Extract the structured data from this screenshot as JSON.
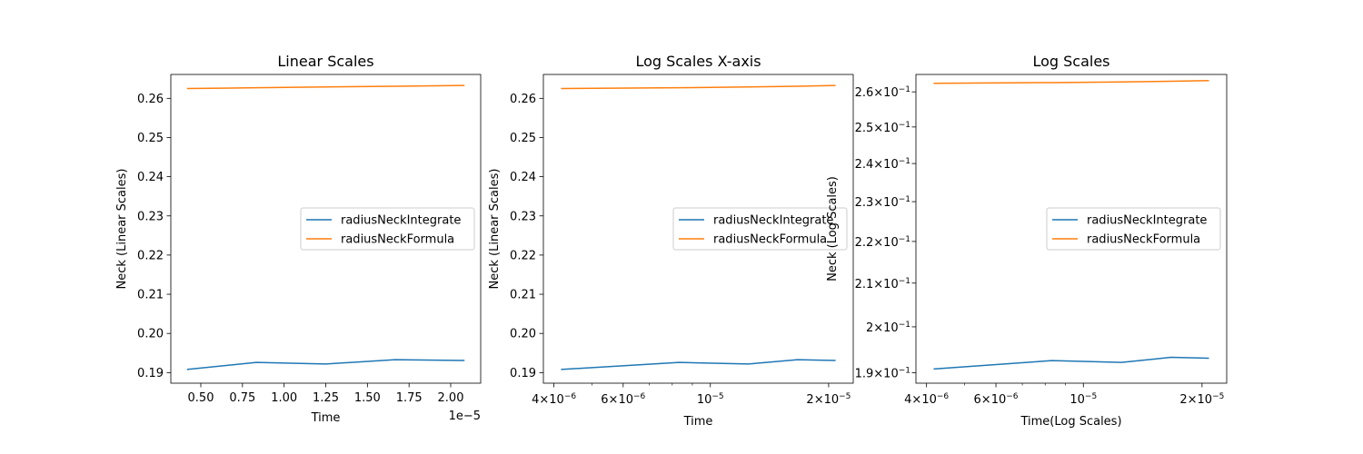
{
  "chart_data": [
    {
      "type": "line",
      "title": "Linear Scales",
      "xlabel": "Time",
      "ylabel": "Neck (Linear Scales)",
      "xscale": "linear",
      "yscale": "linear",
      "xlim": [
        3.2e-06,
        2.18e-05
      ],
      "ylim": [
        0.1873,
        0.2661
      ],
      "x_offset_label": "1e−5",
      "xticks": [
        {
          "value": 5e-06,
          "label": "0.50"
        },
        {
          "value": 7.5e-06,
          "label": "0.75"
        },
        {
          "value": 1e-05,
          "label": "1.00"
        },
        {
          "value": 1.25e-05,
          "label": "1.25"
        },
        {
          "value": 1.5e-05,
          "label": "1.50"
        },
        {
          "value": 1.75e-05,
          "label": "1.75"
        },
        {
          "value": 2e-05,
          "label": "2.00"
        }
      ],
      "yticks": [
        {
          "value": 0.19,
          "label": "0.19"
        },
        {
          "value": 0.2,
          "label": "0.20"
        },
        {
          "value": 0.21,
          "label": "0.21"
        },
        {
          "value": 0.22,
          "label": "0.22"
        },
        {
          "value": 0.23,
          "label": "0.23"
        },
        {
          "value": 0.24,
          "label": "0.24"
        },
        {
          "value": 0.25,
          "label": "0.25"
        },
        {
          "value": 0.26,
          "label": "0.26"
        }
      ],
      "legend_position": "center-right",
      "series": [
        {
          "name": "radiusNeckIntegrate",
          "color": "#1f77b4",
          "x": [
            4.17e-06,
            8.33e-06,
            1.25e-05,
            1.667e-05,
            2.083e-05
          ],
          "y": [
            0.1908,
            0.1926,
            0.1922,
            0.1933,
            0.1931
          ]
        },
        {
          "name": "radiusNeckFormula",
          "color": "#ff7f0e",
          "x": [
            4.17e-06,
            8.33e-06,
            1.25e-05,
            1.667e-05,
            2.083e-05
          ],
          "y": [
            0.2625,
            0.2627,
            0.2629,
            0.2631,
            0.2633
          ]
        }
      ]
    },
    {
      "type": "line",
      "title": "Log Scales X-axis",
      "xlabel": "Time",
      "ylabel": "Neck (Linear Scales)",
      "xscale": "log",
      "yscale": "linear",
      "xlim": [
        3.76e-06,
        2.31e-05
      ],
      "ylim": [
        0.1873,
        0.2661
      ],
      "xticks": [
        {
          "value": 4e-06,
          "base": "4×10",
          "exp": "−6"
        },
        {
          "value": 6e-06,
          "base": "6×10",
          "exp": "−6"
        },
        {
          "value": 1e-05,
          "base": "10",
          "exp": "−5"
        },
        {
          "value": 2e-05,
          "base": "2×10",
          "exp": "−5"
        }
      ],
      "xminor": [
        5e-06,
        7e-06,
        8e-06,
        9e-06
      ],
      "yticks": [
        {
          "value": 0.19,
          "label": "0.19"
        },
        {
          "value": 0.2,
          "label": "0.20"
        },
        {
          "value": 0.21,
          "label": "0.21"
        },
        {
          "value": 0.22,
          "label": "0.22"
        },
        {
          "value": 0.23,
          "label": "0.23"
        },
        {
          "value": 0.24,
          "label": "0.24"
        },
        {
          "value": 0.25,
          "label": "0.25"
        },
        {
          "value": 0.26,
          "label": "0.26"
        }
      ],
      "legend_position": "center-right",
      "series": [
        {
          "name": "radiusNeckIntegrate",
          "color": "#1f77b4",
          "x": [
            4.17e-06,
            8.33e-06,
            1.25e-05,
            1.667e-05,
            2.083e-05
          ],
          "y": [
            0.1908,
            0.1926,
            0.1922,
            0.1933,
            0.1931
          ]
        },
        {
          "name": "radiusNeckFormula",
          "color": "#ff7f0e",
          "x": [
            4.17e-06,
            8.33e-06,
            1.25e-05,
            1.667e-05,
            2.083e-05
          ],
          "y": [
            0.2625,
            0.2627,
            0.2629,
            0.2631,
            0.2633
          ]
        }
      ]
    },
    {
      "type": "line",
      "title": "Log Scales",
      "xlabel": "Time(Log Scales)",
      "ylabel": "Neck (Log Scales)",
      "xscale": "log",
      "yscale": "log",
      "xlim": [
        3.76e-06,
        2.31e-05
      ],
      "ylim": [
        0.1878,
        0.2651
      ],
      "xticks": [
        {
          "value": 4e-06,
          "base": "4×10",
          "exp": "−6"
        },
        {
          "value": 6e-06,
          "base": "6×10",
          "exp": "−6"
        },
        {
          "value": 1e-05,
          "base": "10",
          "exp": "−5"
        },
        {
          "value": 2e-05,
          "base": "2×10",
          "exp": "−5"
        }
      ],
      "xminor": [
        5e-06,
        7e-06,
        8e-06,
        9e-06
      ],
      "yticks": [
        {
          "value": 0.19,
          "base": "1.9×10",
          "exp": "−1"
        },
        {
          "value": 0.2,
          "base": "2×10",
          "exp": "−1"
        },
        {
          "value": 0.21,
          "base": "2.1×10",
          "exp": "−1"
        },
        {
          "value": 0.22,
          "base": "2.2×10",
          "exp": "−1"
        },
        {
          "value": 0.23,
          "base": "2.3×10",
          "exp": "−1"
        },
        {
          "value": 0.24,
          "base": "2.4×10",
          "exp": "−1"
        },
        {
          "value": 0.25,
          "base": "2.5×10",
          "exp": "−1"
        },
        {
          "value": 0.26,
          "base": "2.6×10",
          "exp": "−1"
        }
      ],
      "legend_position": "center-right",
      "series": [
        {
          "name": "radiusNeckIntegrate",
          "color": "#1f77b4",
          "x": [
            4.17e-06,
            8.33e-06,
            1.25e-05,
            1.667e-05,
            2.083e-05
          ],
          "y": [
            0.1908,
            0.1926,
            0.1922,
            0.1933,
            0.1931
          ]
        },
        {
          "name": "radiusNeckFormula",
          "color": "#ff7f0e",
          "x": [
            4.17e-06,
            8.33e-06,
            1.25e-05,
            1.667e-05,
            2.083e-05
          ],
          "y": [
            0.2625,
            0.2627,
            0.2629,
            0.2631,
            0.2633
          ]
        }
      ]
    }
  ]
}
